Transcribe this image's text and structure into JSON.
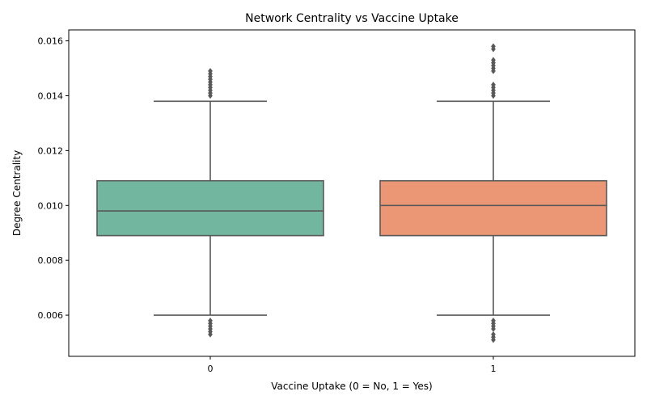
{
  "chart_data": {
    "type": "box",
    "title": "Network Centrality vs Vaccine Uptake",
    "xlabel": "Vaccine Uptake (0 = No, 1 = Yes)",
    "ylabel": "Degree Centrality",
    "categories": [
      "0",
      "1"
    ],
    "ylim": [
      0.0045,
      0.0164
    ],
    "yticks": [
      0.006,
      0.008,
      0.01,
      0.012,
      0.014,
      0.016
    ],
    "ytick_labels": [
      "0.006",
      "0.008",
      "0.010",
      "0.012",
      "0.014",
      "0.016"
    ],
    "grid": false,
    "legend": "none",
    "boxes": [
      {
        "category": "0",
        "color": "#72b6a0",
        "whisker_low": 0.006,
        "q1": 0.0089,
        "median": 0.0098,
        "q3": 0.0109,
        "whisker_high": 0.0138,
        "outliers": [
          0.0053,
          0.0054,
          0.0055,
          0.0056,
          0.0057,
          0.0058,
          0.014,
          0.0141,
          0.0142,
          0.0143,
          0.0144,
          0.0145,
          0.0146,
          0.0147,
          0.0148,
          0.0149
        ]
      },
      {
        "category": "1",
        "color": "#eb9674",
        "whisker_low": 0.006,
        "q1": 0.0089,
        "median": 0.01,
        "q3": 0.0109,
        "whisker_high": 0.0138,
        "outliers": [
          0.0051,
          0.0052,
          0.0053,
          0.0055,
          0.0056,
          0.0057,
          0.0058,
          0.014,
          0.0141,
          0.0142,
          0.0143,
          0.0144,
          0.0149,
          0.015,
          0.0151,
          0.0152,
          0.0153,
          0.0157,
          0.0158
        ]
      }
    ]
  }
}
